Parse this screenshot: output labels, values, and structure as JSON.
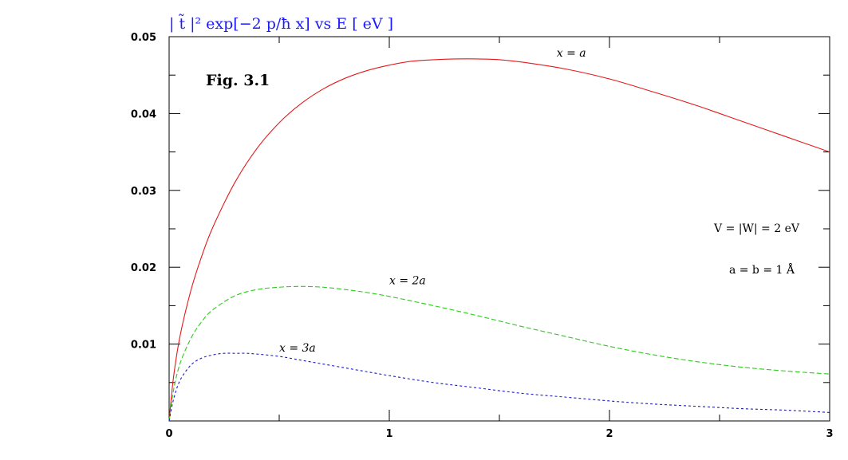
{
  "chart_data": {
    "type": "line",
    "title": "| t̃ |² exp[−2 p/ħ x] vs E [ eV ]",
    "figure_label": "Fig. 3.1",
    "xlabel": "",
    "ylabel": "",
    "xlim": [
      0,
      3
    ],
    "ylim": [
      0,
      0.05
    ],
    "x_ticks": [
      {
        "value": 0,
        "label": "0"
      },
      {
        "value": 1,
        "label": "1"
      },
      {
        "value": 2,
        "label": "2"
      },
      {
        "value": 3,
        "label": "3"
      }
    ],
    "y_ticks": [
      {
        "value": 0.01,
        "label": "0.01"
      },
      {
        "value": 0.02,
        "label": "0.02"
      },
      {
        "value": 0.03,
        "label": "0.03"
      },
      {
        "value": 0.04,
        "label": "0.04"
      },
      {
        "value": 0.05,
        "label": "0.05"
      }
    ],
    "annotations": {
      "potential": "V = |W| = 2 eV",
      "widths": "a = b = 1 Å"
    },
    "series": [
      {
        "name": "x = a",
        "color": "#e41a1c",
        "style": "solid",
        "x": [
          0,
          0.02,
          0.05,
          0.1,
          0.15,
          0.2,
          0.3,
          0.4,
          0.5,
          0.6,
          0.7,
          0.8,
          0.9,
          1.0,
          1.1,
          1.2,
          1.3,
          1.4,
          1.5,
          1.6,
          1.8,
          2.0,
          2.2,
          2.4,
          2.6,
          2.8,
          3.0
        ],
        "y": [
          0,
          0.0057,
          0.0111,
          0.0171,
          0.0216,
          0.0253,
          0.0311,
          0.0355,
          0.0388,
          0.0413,
          0.0432,
          0.0446,
          0.0456,
          0.0463,
          0.0468,
          0.047,
          0.0471,
          0.0471,
          0.047,
          0.0467,
          0.0458,
          0.0445,
          0.0428,
          0.041,
          0.039,
          0.037,
          0.035
        ]
      },
      {
        "name": "x = 2a",
        "color": "#2ccc1a",
        "style": "dashed",
        "x": [
          0,
          0.02,
          0.05,
          0.1,
          0.15,
          0.2,
          0.3,
          0.4,
          0.5,
          0.6,
          0.7,
          0.8,
          0.9,
          1.0,
          1.2,
          1.4,
          1.6,
          1.8,
          2.0,
          2.2,
          2.4,
          2.6,
          2.8,
          3.0
        ],
        "y": [
          0,
          0.004,
          0.0075,
          0.0108,
          0.013,
          0.0145,
          0.0163,
          0.0171,
          0.0174,
          0.0175,
          0.0174,
          0.0171,
          0.0167,
          0.0162,
          0.015,
          0.0137,
          0.0123,
          0.011,
          0.0097,
          0.0086,
          0.0077,
          0.007,
          0.0065,
          0.0061
        ]
      },
      {
        "name": "x = 3a",
        "color": "#1a1acc",
        "style": "dotted",
        "x": [
          0,
          0.02,
          0.05,
          0.1,
          0.15,
          0.2,
          0.25,
          0.3,
          0.35,
          0.4,
          0.5,
          0.6,
          0.8,
          1.0,
          1.2,
          1.4,
          1.6,
          1.8,
          2.0,
          2.2,
          2.4,
          2.6,
          2.8,
          3.0
        ],
        "y": [
          0,
          0.0028,
          0.0053,
          0.0073,
          0.0082,
          0.0086,
          0.0088,
          0.0088,
          0.0088,
          0.0087,
          0.0084,
          0.0079,
          0.0069,
          0.0059,
          0.005,
          0.0043,
          0.0036,
          0.0031,
          0.0026,
          0.0022,
          0.0019,
          0.0016,
          0.0014,
          0.0011
        ]
      }
    ],
    "series_labels": [
      {
        "series": 0,
        "text": "x = a",
        "at_x": 1.76,
        "at_y": 0.0474
      },
      {
        "series": 1,
        "text": "x = 2a",
        "at_x": 1.0,
        "at_y": 0.0178
      },
      {
        "series": 2,
        "text": "x = 3a",
        "at_x": 0.5,
        "at_y": 0.009
      }
    ]
  }
}
